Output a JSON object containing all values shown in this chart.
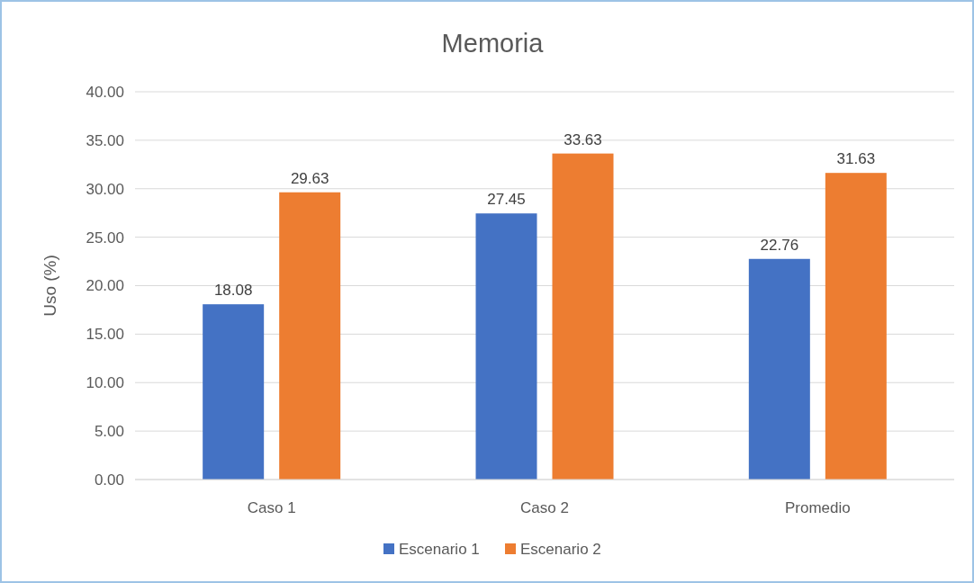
{
  "chart_data": {
    "type": "bar",
    "title": "Memoria",
    "ylabel": "Uso (%)",
    "categories": [
      "Caso 1",
      "Caso 2",
      "Promedio"
    ],
    "series": [
      {
        "name": "Escenario 1",
        "color": "#4472c4",
        "values": [
          18.08,
          27.45,
          22.76
        ]
      },
      {
        "name": "Escenario 2",
        "color": "#ed7d31",
        "values": [
          29.63,
          33.63,
          31.63
        ]
      }
    ],
    "ylim": [
      0,
      40
    ],
    "yticks": [
      {
        "value": 0,
        "label": "0.00"
      },
      {
        "value": 5,
        "label": "5.00"
      },
      {
        "value": 10,
        "label": "10.00"
      },
      {
        "value": 15,
        "label": "15.00"
      },
      {
        "value": 20,
        "label": "20.00"
      },
      {
        "value": 25,
        "label": "25.00"
      },
      {
        "value": 30,
        "label": "30.00"
      },
      {
        "value": 35,
        "label": "35.00"
      },
      {
        "value": 40,
        "label": "40.00"
      }
    ],
    "grid": "y",
    "legend": "bottom",
    "data_labels": true
  }
}
